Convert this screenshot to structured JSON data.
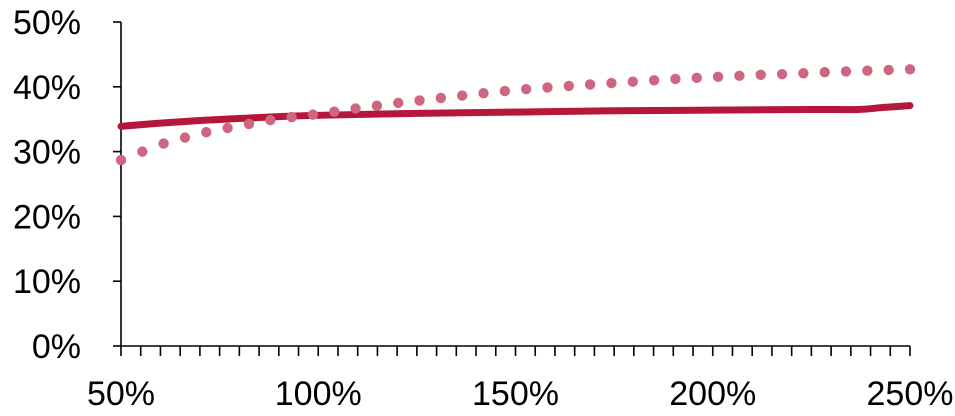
{
  "chart_data": {
    "type": "line",
    "x_tick_labels": [
      "50%",
      "100%",
      "150%",
      "200%",
      "250%"
    ],
    "x_ticks": [
      50,
      100,
      150,
      200,
      250
    ],
    "y_tick_labels": [
      "0%",
      "10%",
      "20%",
      "30%",
      "40%",
      "50%"
    ],
    "y_ticks": [
      0,
      10,
      20,
      30,
      40,
      50
    ],
    "xlim": [
      50,
      250
    ],
    "ylim": [
      0,
      50
    ],
    "x_minor_tick_step": 5,
    "grid": false,
    "legend": "none",
    "series": [
      {
        "style": "solid",
        "color": "#b5173a",
        "x": [
          50,
          60,
          70,
          80,
          90,
          100,
          125,
          150,
          175,
          200,
          225,
          237,
          243,
          250
        ],
        "y": [
          33.9,
          34.4,
          34.8,
          35.1,
          35.4,
          35.6,
          35.9,
          36.1,
          36.3,
          36.4,
          36.5,
          36.5,
          36.8,
          37.1
        ]
      },
      {
        "style": "dotted",
        "color": "#cf6680",
        "x": [
          50,
          60,
          70,
          80,
          90,
          100,
          110,
          120,
          130,
          140,
          150,
          160,
          170,
          180,
          190,
          200,
          210,
          220,
          230,
          240,
          250
        ],
        "y": [
          28.7,
          31.1,
          32.8,
          34.0,
          35.1,
          35.8,
          36.7,
          37.5,
          38.2,
          38.9,
          39.5,
          40.0,
          40.4,
          40.8,
          41.2,
          41.5,
          41.8,
          42.0,
          42.3,
          42.5,
          42.7
        ]
      }
    ]
  }
}
